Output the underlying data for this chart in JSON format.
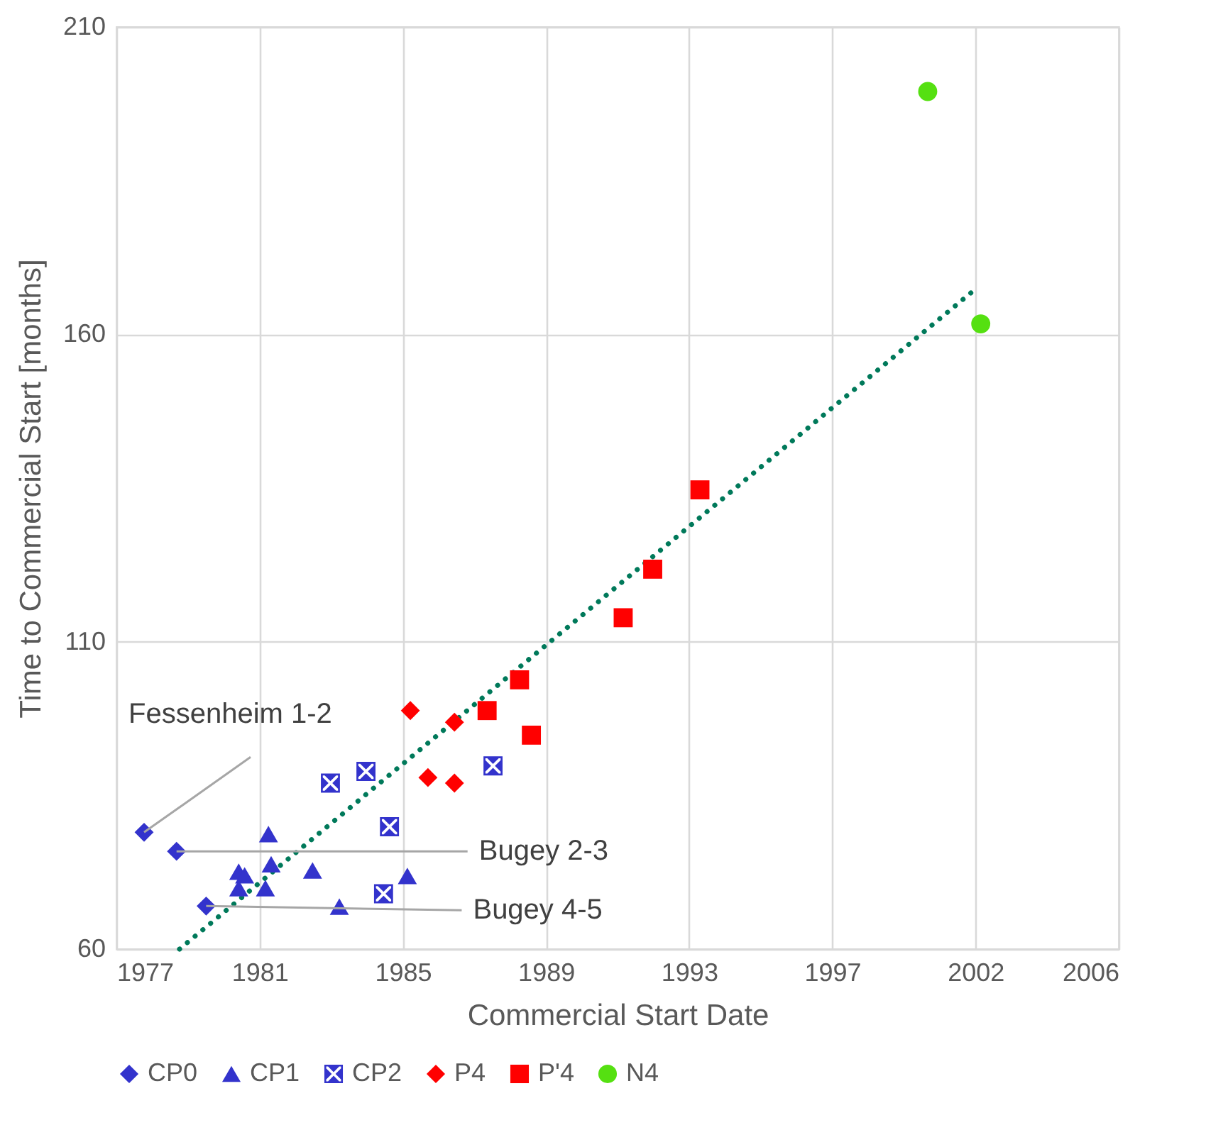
{
  "chart_data": {
    "type": "scatter",
    "xlabel": "Commercial Start Date",
    "ylabel": "Time to Commercial Start [months]",
    "xlim": [
      "1977-10-20",
      "2006-01-19"
    ],
    "ylim": [
      60,
      210
    ],
    "xticks": [
      {
        "value": "1977-10-20",
        "label": "1977"
      },
      {
        "value": "1981-11-02",
        "label": "1981"
      },
      {
        "value": "1985-11-15",
        "label": "1985"
      },
      {
        "value": "1989-11-28",
        "label": "1989"
      },
      {
        "value": "1993-12-11",
        "label": "1993"
      },
      {
        "value": "1997-12-24",
        "label": "1997"
      },
      {
        "value": "2002-01-06",
        "label": "2002"
      },
      {
        "value": "2006-01-19",
        "label": "2006"
      }
    ],
    "yticks": [
      60,
      110,
      160,
      210
    ],
    "grid": true,
    "legend": "bottom",
    "series": [
      {
        "name": "CP0",
        "color": "#3333cc",
        "marker": "diamond",
        "x": [
          "1978-08",
          "1979-07",
          "1980-05"
        ],
        "values": [
          79.0,
          75.9,
          67.0
        ]
      },
      {
        "name": "CP1",
        "color": "#3333cc",
        "marker": "triangle",
        "x": [
          "1982-02",
          "1982-03",
          "1981-04",
          "1981-06",
          "1981-04",
          "1982-01",
          "1983-05",
          "1984-02",
          "1986-01"
        ],
        "values": [
          78.7,
          73.8,
          72.6,
          72.0,
          69.9,
          69.9,
          72.8,
          66.9,
          71.9
        ]
      },
      {
        "name": "CP2",
        "color": "#3333cc",
        "marker": "cross",
        "x": [
          "1983-11",
          "1984-11",
          "1985-07",
          "1985-05",
          "1988-06"
        ],
        "values": [
          87.0,
          88.9,
          79.9,
          69.0,
          89.8
        ]
      },
      {
        "name": "P4",
        "color": "#ff0000",
        "marker": "diamond",
        "x": [
          "1986-02",
          "1987-05",
          "1986-08",
          "1987-05"
        ],
        "values": [
          98.8,
          96.9,
          87.9,
          87.0
        ]
      },
      {
        "name": "P'4",
        "color": "#ff0000",
        "marker": "square",
        "x": [
          "1989-03",
          "1988-04",
          "1989-07",
          "1992-02",
          "1992-12",
          "1994-04"
        ],
        "values": [
          103.8,
          98.8,
          94.8,
          113.9,
          121.8,
          134.7
        ]
      },
      {
        "name": "N4",
        "color": "#55e011",
        "marker": "circle",
        "x": [
          "2000-09",
          "2002-03"
        ],
        "values": [
          199.5,
          161.7
        ]
      },
      {
        "type": "line",
        "color": "#00795a",
        "line_style": "dotted",
        "marker": "none",
        "x": [
          "1979-08",
          "2002-01"
        ],
        "values": [
          60,
          167.3
        ]
      }
    ],
    "annotations": [
      {
        "text": "Fessenheim 1-2",
        "x": "1978-08",
        "y": 79.0
      },
      {
        "text": "Bugey 2-3",
        "x": "1979-07",
        "y": 75.9
      },
      {
        "text": "Bugey 4-5",
        "x": "1980-05",
        "y": 67.0
      }
    ]
  }
}
